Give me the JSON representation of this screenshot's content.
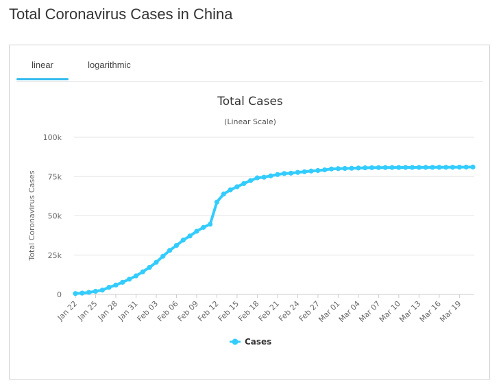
{
  "page": {
    "title": "Total Coronavirus Cases in China"
  },
  "tabs": [
    {
      "label": "linear",
      "active": true
    },
    {
      "label": "logarithmic",
      "active": false
    }
  ],
  "colors": {
    "series": "#33ccff",
    "accent": "#33bbee",
    "grid": "#e6e6e6"
  },
  "chart_data": {
    "type": "line",
    "title": "Total Cases",
    "subtitle": "(Linear Scale)",
    "ylabel": "Total Coronavirus Cases",
    "xlabel": "",
    "ylim": [
      0,
      100000
    ],
    "y_ticks": [
      0,
      25000,
      50000,
      75000,
      100000
    ],
    "y_tick_labels": [
      "0",
      "25k",
      "50k",
      "75k",
      "100k"
    ],
    "x_tick_labels": [
      "Jan 22",
      "Jan 25",
      "Jan 28",
      "Jan 31",
      "Feb 03",
      "Feb 06",
      "Feb 09",
      "Feb 12",
      "Feb 15",
      "Feb 18",
      "Feb 21",
      "Feb 24",
      "Feb 27",
      "Mar 01",
      "Mar 04",
      "Mar 07",
      "Mar 10",
      "Mar 13",
      "Mar 16",
      "Mar 19"
    ],
    "grid": true,
    "legend": "bottom-center",
    "x": [
      "Jan 22",
      "Jan 23",
      "Jan 24",
      "Jan 25",
      "Jan 26",
      "Jan 27",
      "Jan 28",
      "Jan 29",
      "Jan 30",
      "Jan 31",
      "Feb 01",
      "Feb 02",
      "Feb 03",
      "Feb 04",
      "Feb 05",
      "Feb 06",
      "Feb 07",
      "Feb 08",
      "Feb 09",
      "Feb 10",
      "Feb 11",
      "Feb 12",
      "Feb 13",
      "Feb 14",
      "Feb 15",
      "Feb 16",
      "Feb 17",
      "Feb 18",
      "Feb 19",
      "Feb 20",
      "Feb 21",
      "Feb 22",
      "Feb 23",
      "Feb 24",
      "Feb 25",
      "Feb 26",
      "Feb 27",
      "Feb 28",
      "Feb 29",
      "Mar 01",
      "Mar 02",
      "Mar 03",
      "Mar 04",
      "Mar 05",
      "Mar 06",
      "Mar 07",
      "Mar 08",
      "Mar 09",
      "Mar 10",
      "Mar 11",
      "Mar 12",
      "Mar 13",
      "Mar 14",
      "Mar 15",
      "Mar 16",
      "Mar 17",
      "Mar 18",
      "Mar 19",
      "Mar 20",
      "Mar 21"
    ],
    "series": [
      {
        "name": "Cases",
        "values": [
          571,
          830,
          1287,
          1975,
          2744,
          4515,
          5974,
          7711,
          9692,
          11791,
          14380,
          17205,
          20438,
          24324,
          28018,
          31161,
          34546,
          37198,
          40171,
          42638,
          44653,
          58761,
          63851,
          66492,
          68500,
          70548,
          72436,
          74185,
          74576,
          75465,
          76288,
          76936,
          77150,
          77658,
          78064,
          78497,
          78824,
          79251,
          79824,
          80026,
          80151,
          80270,
          80409,
          80552,
          80651,
          80695,
          80735,
          80754,
          80778,
          80793,
          80813,
          80824,
          80844,
          80860,
          80881,
          80894,
          80928,
          80967,
          81008,
          81054
        ]
      }
    ]
  }
}
